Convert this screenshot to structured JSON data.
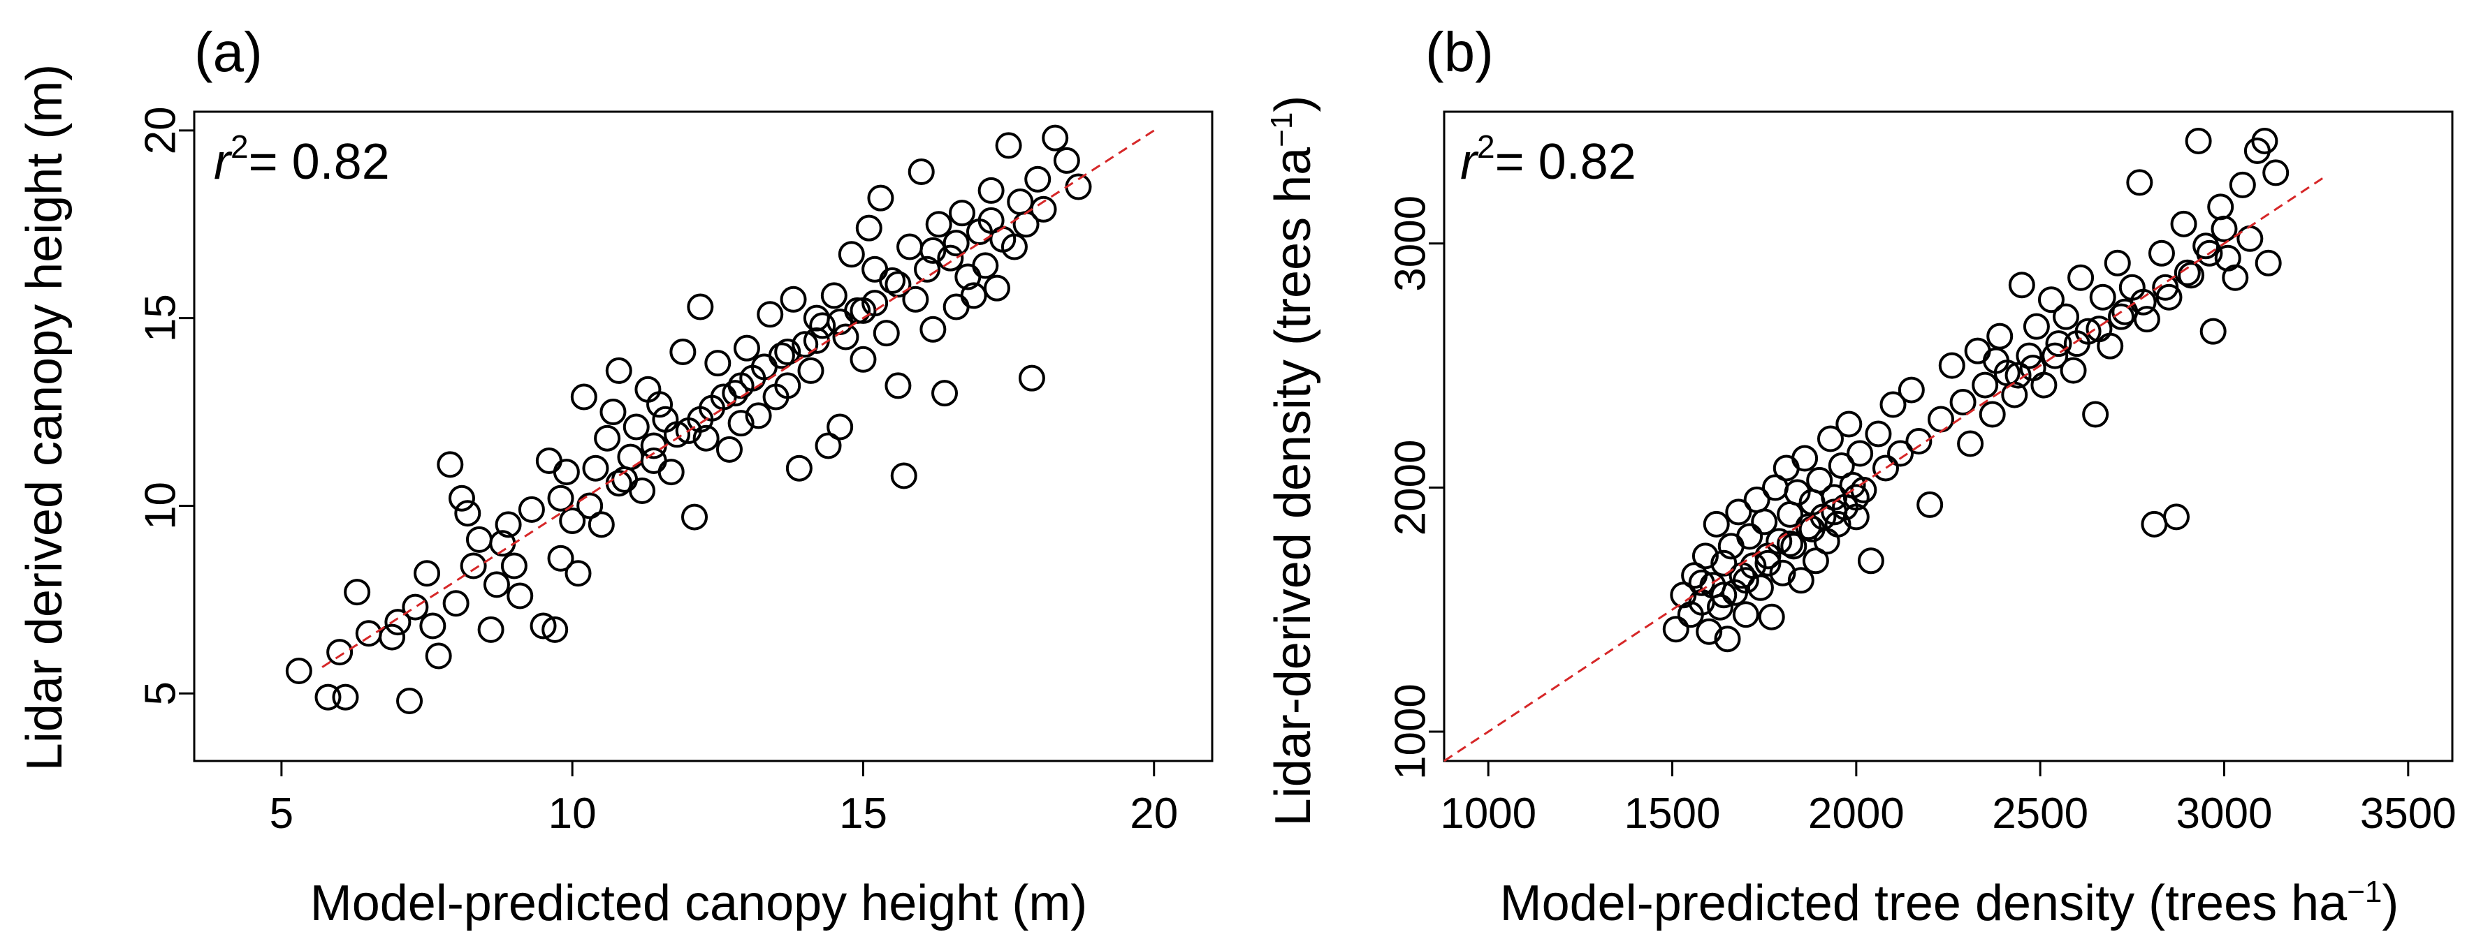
{
  "chart_data": [
    {
      "type": "scatter",
      "panel_label": "(a)",
      "annotation": {
        "prefix": "r",
        "sup": "2",
        "suffix": "= 0.82"
      },
      "xlabel": "Model-predicted canopy height (m)",
      "ylabel": "Lidar derived canopy height (m)",
      "xlim": [
        3.5,
        21.0
      ],
      "ylim": [
        3.2,
        20.5
      ],
      "xticks": [
        5,
        10,
        15,
        20
      ],
      "yticks": [
        5,
        10,
        15,
        20
      ],
      "reference_line": {
        "style": "dashed",
        "color": "#d62728",
        "from": [
          5.7,
          5.7
        ],
        "to": [
          20,
          20
        ]
      },
      "points": [
        [
          5.3,
          5.6
        ],
        [
          5.8,
          4.9
        ],
        [
          6.1,
          4.9
        ],
        [
          7.2,
          4.8
        ],
        [
          6.3,
          7.7
        ],
        [
          6.5,
          6.6
        ],
        [
          6.9,
          6.5
        ],
        [
          7.3,
          7.3
        ],
        [
          7.5,
          8.2
        ],
        [
          7.6,
          6.8
        ],
        [
          7.7,
          6.0
        ],
        [
          7.9,
          11.1
        ],
        [
          8.0,
          7.4
        ],
        [
          8.1,
          10.2
        ],
        [
          8.2,
          9.8
        ],
        [
          8.3,
          8.4
        ],
        [
          8.4,
          9.1
        ],
        [
          8.6,
          6.7
        ],
        [
          8.7,
          7.9
        ],
        [
          8.9,
          9.5
        ],
        [
          9.0,
          8.4
        ],
        [
          9.1,
          7.6
        ],
        [
          9.3,
          9.9
        ],
        [
          9.5,
          6.8
        ],
        [
          9.6,
          11.2
        ],
        [
          9.7,
          6.7
        ],
        [
          9.8,
          8.6
        ],
        [
          9.9,
          10.9
        ],
        [
          10.0,
          9.6
        ],
        [
          10.1,
          8.2
        ],
        [
          10.2,
          12.9
        ],
        [
          10.3,
          10.0
        ],
        [
          10.4,
          11.0
        ],
        [
          10.5,
          9.5
        ],
        [
          10.6,
          11.8
        ],
        [
          10.7,
          12.5
        ],
        [
          10.8,
          13.6
        ],
        [
          10.9,
          10.7
        ],
        [
          11.0,
          11.3
        ],
        [
          11.1,
          12.1
        ],
        [
          11.2,
          10.4
        ],
        [
          11.3,
          13.1
        ],
        [
          11.4,
          11.6
        ],
        [
          11.5,
          12.7
        ],
        [
          11.6,
          12.3
        ],
        [
          11.7,
          10.9
        ],
        [
          11.8,
          11.9
        ],
        [
          11.9,
          14.1
        ],
        [
          12.0,
          12.0
        ],
        [
          12.1,
          9.7
        ],
        [
          12.2,
          15.3
        ],
        [
          12.3,
          11.8
        ],
        [
          12.4,
          12.6
        ],
        [
          12.5,
          13.8
        ],
        [
          12.6,
          12.9
        ],
        [
          12.7,
          11.5
        ],
        [
          12.8,
          13.0
        ],
        [
          12.9,
          12.2
        ],
        [
          13.0,
          14.2
        ],
        [
          13.1,
          13.4
        ],
        [
          13.2,
          12.4
        ],
        [
          13.3,
          13.7
        ],
        [
          13.4,
          15.1
        ],
        [
          13.5,
          12.9
        ],
        [
          13.6,
          14.0
        ],
        [
          13.7,
          13.2
        ],
        [
          13.8,
          15.5
        ],
        [
          13.9,
          11.0
        ],
        [
          14.0,
          14.3
        ],
        [
          14.1,
          13.6
        ],
        [
          14.2,
          15.0
        ],
        [
          14.3,
          14.8
        ],
        [
          14.4,
          11.6
        ],
        [
          14.5,
          15.6
        ],
        [
          14.6,
          12.1
        ],
        [
          14.7,
          14.5
        ],
        [
          14.8,
          16.7
        ],
        [
          14.9,
          15.2
        ],
        [
          15.0,
          13.9
        ],
        [
          15.1,
          17.4
        ],
        [
          15.2,
          15.4
        ],
        [
          15.3,
          18.2
        ],
        [
          15.4,
          14.6
        ],
        [
          15.5,
          16.0
        ],
        [
          15.6,
          13.2
        ],
        [
          15.7,
          10.8
        ],
        [
          15.8,
          16.9
        ],
        [
          15.9,
          15.5
        ],
        [
          16.0,
          18.9
        ],
        [
          16.1,
          16.3
        ],
        [
          16.2,
          14.7
        ],
        [
          16.3,
          17.5
        ],
        [
          16.4,
          13.0
        ],
        [
          16.5,
          16.6
        ],
        [
          16.6,
          15.3
        ],
        [
          16.7,
          17.8
        ],
        [
          16.8,
          16.1
        ],
        [
          16.9,
          15.6
        ],
        [
          17.0,
          17.3
        ],
        [
          17.1,
          16.4
        ],
        [
          17.2,
          18.4
        ],
        [
          17.3,
          15.8
        ],
        [
          17.4,
          17.1
        ],
        [
          17.5,
          19.6
        ],
        [
          17.6,
          16.9
        ],
        [
          17.7,
          18.1
        ],
        [
          17.8,
          17.5
        ],
        [
          17.9,
          13.4
        ],
        [
          18.0,
          18.7
        ],
        [
          18.1,
          17.9
        ],
        [
          18.3,
          19.8
        ],
        [
          18.5,
          19.2
        ],
        [
          18.7,
          18.5
        ],
        [
          15.2,
          16.3
        ],
        [
          15.6,
          15.9
        ],
        [
          16.2,
          16.8
        ],
        [
          14.6,
          14.9
        ],
        [
          15.0,
          15.2
        ],
        [
          13.7,
          14.1
        ],
        [
          11.4,
          11.2
        ],
        [
          10.8,
          10.6
        ],
        [
          12.2,
          12.3
        ],
        [
          12.9,
          13.2
        ],
        [
          14.2,
          14.4
        ],
        [
          16.6,
          17.0
        ],
        [
          17.2,
          17.6
        ],
        [
          9.8,
          10.2
        ],
        [
          8.8,
          9.0
        ],
        [
          7.0,
          6.9
        ],
        [
          6.0,
          6.1
        ]
      ]
    },
    {
      "type": "scatter",
      "panel_label": "(b)",
      "annotation": {
        "prefix": "r",
        "sup": "2",
        "suffix": "= 0.82"
      },
      "xlabel": {
        "text": "Model-predicted tree density (trees ha",
        "sup": "−1",
        "close": ")"
      },
      "ylabel": {
        "text": "Lidar-derived density (trees ha",
        "sup": "−1",
        "close": ")"
      },
      "xlim": [
        880,
        3620
      ],
      "ylim": [
        880,
        3540
      ],
      "xticks": [
        1000,
        1500,
        2000,
        2500,
        3000,
        3500
      ],
      "yticks": [
        1000,
        2000,
        3000
      ],
      "reference_line": {
        "style": "dashed",
        "color": "#d62728",
        "from": [
          880,
          880
        ],
        "to": [
          3280,
          3280
        ]
      },
      "points": [
        [
          1510,
          1420
        ],
        [
          1530,
          1560
        ],
        [
          1550,
          1480
        ],
        [
          1560,
          1640
        ],
        [
          1580,
          1530
        ],
        [
          1590,
          1720
        ],
        [
          1600,
          1410
        ],
        [
          1610,
          1600
        ],
        [
          1620,
          1850
        ],
        [
          1630,
          1510
        ],
        [
          1640,
          1690
        ],
        [
          1650,
          1380
        ],
        [
          1660,
          1760
        ],
        [
          1670,
          1570
        ],
        [
          1680,
          1900
        ],
        [
          1690,
          1640
        ],
        [
          1700,
          1480
        ],
        [
          1710,
          1800
        ],
        [
          1720,
          1680
        ],
        [
          1730,
          1950
        ],
        [
          1740,
          1590
        ],
        [
          1750,
          1860
        ],
        [
          1760,
          1720
        ],
        [
          1770,
          1470
        ],
        [
          1780,
          2000
        ],
        [
          1790,
          1780
        ],
        [
          1800,
          1650
        ],
        [
          1810,
          2080
        ],
        [
          1820,
          1890
        ],
        [
          1830,
          1760
        ],
        [
          1840,
          1980
        ],
        [
          1850,
          1620
        ],
        [
          1860,
          2120
        ],
        [
          1870,
          1840
        ],
        [
          1880,
          1940
        ],
        [
          1890,
          1700
        ],
        [
          1900,
          2030
        ],
        [
          1910,
          1880
        ],
        [
          1920,
          1780
        ],
        [
          1930,
          2200
        ],
        [
          1940,
          1960
        ],
        [
          1950,
          1850
        ],
        [
          1960,
          2090
        ],
        [
          1970,
          1920
        ],
        [
          1980,
          2260
        ],
        [
          1990,
          2010
        ],
        [
          2000,
          1880
        ],
        [
          2010,
          2140
        ],
        [
          2020,
          1990
        ],
        [
          2040,
          1700
        ],
        [
          2060,
          2220
        ],
        [
          2080,
          2080
        ],
        [
          2100,
          2340
        ],
        [
          2120,
          2140
        ],
        [
          2150,
          2400
        ],
        [
          2170,
          2190
        ],
        [
          2200,
          1930
        ],
        [
          2230,
          2280
        ],
        [
          2260,
          2500
        ],
        [
          2290,
          2350
        ],
        [
          2310,
          2180
        ],
        [
          2330,
          2560
        ],
        [
          2350,
          2420
        ],
        [
          2370,
          2300
        ],
        [
          2390,
          2620
        ],
        [
          2410,
          2470
        ],
        [
          2430,
          2380
        ],
        [
          2450,
          2830
        ],
        [
          2470,
          2540
        ],
        [
          2490,
          2660
        ],
        [
          2510,
          2420
        ],
        [
          2530,
          2770
        ],
        [
          2550,
          2590
        ],
        [
          2570,
          2700
        ],
        [
          2590,
          2480
        ],
        [
          2610,
          2860
        ],
        [
          2630,
          2640
        ],
        [
          2650,
          2300
        ],
        [
          2670,
          2780
        ],
        [
          2690,
          2580
        ],
        [
          2710,
          2920
        ],
        [
          2730,
          2720
        ],
        [
          2750,
          2820
        ],
        [
          2770,
          3250
        ],
        [
          2790,
          2690
        ],
        [
          2810,
          1850
        ],
        [
          2830,
          2960
        ],
        [
          2850,
          2780
        ],
        [
          2870,
          1880
        ],
        [
          2890,
          3080
        ],
        [
          2910,
          2870
        ],
        [
          2930,
          3420
        ],
        [
          2950,
          2990
        ],
        [
          2970,
          2640
        ],
        [
          2990,
          3150
        ],
        [
          3010,
          2940
        ],
        [
          3030,
          2860
        ],
        [
          3050,
          3240
        ],
        [
          3070,
          3020
        ],
        [
          3090,
          3380
        ],
        [
          3110,
          3420
        ],
        [
          3120,
          2920
        ],
        [
          3140,
          3290
        ],
        [
          1700,
          1620
        ],
        [
          1760,
          1690
        ],
        [
          1820,
          1770
        ],
        [
          1880,
          1830
        ],
        [
          1940,
          1900
        ],
        [
          2000,
          1960
        ],
        [
          2480,
          2490
        ],
        [
          2540,
          2540
        ],
        [
          2600,
          2590
        ],
        [
          2660,
          2650
        ],
        [
          2720,
          2700
        ],
        [
          2780,
          2760
        ],
        [
          2840,
          2820
        ],
        [
          2900,
          2880
        ],
        [
          1640,
          1560
        ],
        [
          1580,
          1610
        ],
        [
          2380,
          2520
        ],
        [
          2440,
          2460
        ],
        [
          2960,
          2960
        ],
        [
          3000,
          3060
        ]
      ]
    }
  ]
}
